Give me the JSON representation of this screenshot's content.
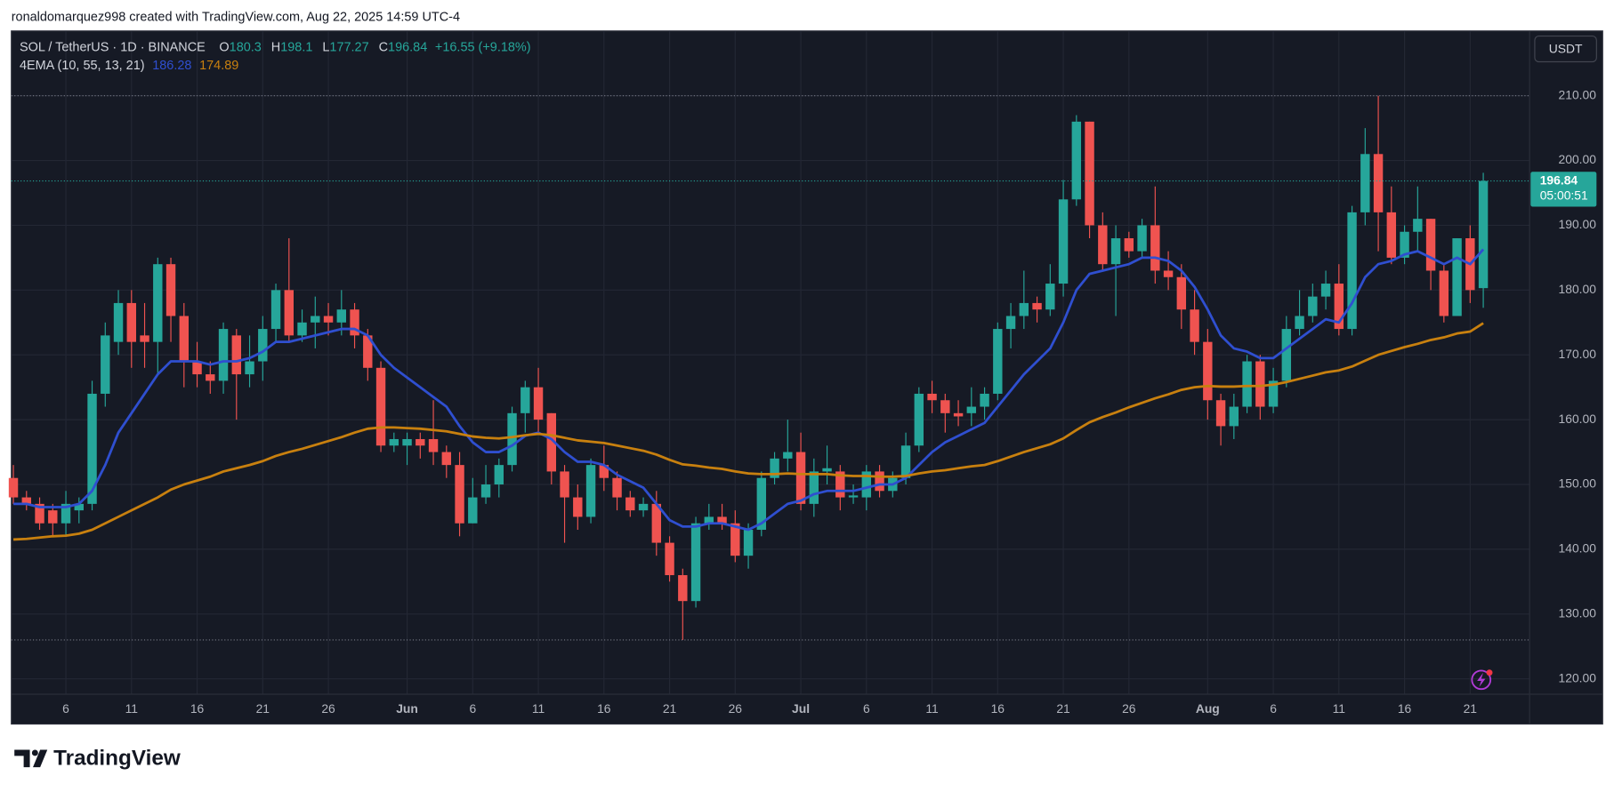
{
  "header": {
    "credit": "ronaldomarquez998 created with TradingView.com, Aug 22, 2025 14:59 UTC-4"
  },
  "footer": {
    "brand": "TradingView"
  },
  "chart_data": {
    "type": "candlestick",
    "title": "SOL / TetherUS · 1D · BINANCE",
    "ohlc_labels": [
      "O",
      "H",
      "L",
      "C"
    ],
    "change": "+16.55 (+9.18%)",
    "currency": "USDT",
    "countdown": "05:00:51",
    "up_color": "#26a69a",
    "down_color": "#ef5350",
    "grid": true,
    "categories": [
      "2025-05-02",
      "2025-05-03",
      "2025-05-04",
      "2025-05-05",
      "2025-05-06",
      "2025-05-07",
      "2025-05-08",
      "2025-05-09",
      "2025-05-10",
      "2025-05-11",
      "2025-05-12",
      "2025-05-13",
      "2025-05-14",
      "2025-05-15",
      "2025-05-16",
      "2025-05-17",
      "2025-05-18",
      "2025-05-19",
      "2025-05-20",
      "2025-05-21",
      "2025-05-22",
      "2025-05-23",
      "2025-05-24",
      "2025-05-25",
      "2025-05-26",
      "2025-05-27",
      "2025-05-28",
      "2025-05-29",
      "2025-05-30",
      "2025-05-31",
      "2025-06-01",
      "2025-06-02",
      "2025-06-03",
      "2025-06-04",
      "2025-06-05",
      "2025-06-06",
      "2025-06-07",
      "2025-06-08",
      "2025-06-09",
      "2025-06-10",
      "2025-06-11",
      "2025-06-12",
      "2025-06-13",
      "2025-06-14",
      "2025-06-15",
      "2025-06-16",
      "2025-06-17",
      "2025-06-18",
      "2025-06-19",
      "2025-06-20",
      "2025-06-21",
      "2025-06-22",
      "2025-06-23",
      "2025-06-24",
      "2025-06-25",
      "2025-06-26",
      "2025-06-27",
      "2025-06-28",
      "2025-06-29",
      "2025-06-30",
      "2025-07-01",
      "2025-07-02",
      "2025-07-03",
      "2025-07-04",
      "2025-07-05",
      "2025-07-06",
      "2025-07-07",
      "2025-07-08",
      "2025-07-09",
      "2025-07-10",
      "2025-07-11",
      "2025-07-12",
      "2025-07-13",
      "2025-07-14",
      "2025-07-15",
      "2025-07-16",
      "2025-07-17",
      "2025-07-18",
      "2025-07-19",
      "2025-07-20",
      "2025-07-21",
      "2025-07-22",
      "2025-07-23",
      "2025-07-24",
      "2025-07-25",
      "2025-07-26",
      "2025-07-27",
      "2025-07-28",
      "2025-07-29",
      "2025-07-30",
      "2025-07-31",
      "2025-08-01",
      "2025-08-02",
      "2025-08-03",
      "2025-08-04",
      "2025-08-05",
      "2025-08-06",
      "2025-08-07",
      "2025-08-08",
      "2025-08-09",
      "2025-08-10",
      "2025-08-11",
      "2025-08-12",
      "2025-08-13",
      "2025-08-14",
      "2025-08-15",
      "2025-08-16",
      "2025-08-17",
      "2025-08-18",
      "2025-08-19",
      "2025-08-20",
      "2025-08-21",
      "2025-08-22"
    ],
    "open": [
      151,
      148,
      147,
      146,
      144,
      146,
      147,
      164,
      172,
      178,
      173,
      172,
      184,
      176,
      169,
      167,
      166,
      173,
      167,
      169,
      174,
      180,
      173,
      175,
      176,
      175,
      177,
      173,
      168,
      156,
      156,
      157,
      157,
      155,
      153,
      144,
      148,
      150,
      153,
      161,
      165,
      161,
      152,
      148,
      145,
      153,
      151,
      148,
      146,
      147,
      141,
      136,
      132,
      144,
      145,
      144,
      139,
      143,
      151,
      154,
      155,
      147,
      152,
      152,
      148,
      148,
      152,
      149,
      151,
      156,
      164,
      163,
      161,
      161,
      162,
      164,
      174,
      176,
      178,
      177,
      181,
      194,
      206,
      190,
      184,
      188,
      186,
      190,
      183,
      182,
      177,
      172,
      163,
      159,
      162,
      169,
      162,
      166,
      174,
      176,
      179,
      181,
      174,
      192,
      201,
      192,
      185,
      189,
      191,
      183,
      176,
      188,
      180.3
    ],
    "high": [
      153,
      149,
      148,
      147,
      149,
      148,
      166,
      175,
      180,
      180,
      178,
      185,
      185,
      178,
      172,
      169,
      175,
      174,
      173,
      176,
      181,
      188,
      177,
      179,
      178,
      180,
      178,
      174,
      169,
      158,
      158,
      158,
      163,
      156,
      155,
      151,
      153,
      154,
      162,
      166,
      168,
      161,
      153,
      150,
      154,
      156,
      152,
      149,
      148,
      149,
      142,
      137,
      145,
      147,
      147,
      146,
      144,
      152,
      155,
      160,
      158,
      154,
      156,
      153,
      150,
      153,
      153,
      152,
      158,
      165,
      166,
      164,
      163,
      165,
      165,
      175,
      178,
      183,
      179,
      184,
      197,
      207,
      206,
      192,
      190,
      189,
      191,
      196,
      186,
      184,
      180,
      174,
      164,
      164,
      170,
      170,
      168,
      176,
      180,
      181,
      183,
      184,
      193,
      205,
      210,
      196,
      190,
      196,
      191,
      184,
      188,
      190,
      198.1
    ],
    "low": [
      147,
      146,
      143,
      142,
      142,
      144,
      146,
      162,
      170,
      168,
      168,
      167,
      172,
      165,
      165,
      164,
      164,
      160,
      165,
      166,
      172,
      172,
      172,
      171,
      173,
      173,
      171,
      166,
      155,
      155,
      153,
      154,
      153,
      151,
      142,
      144,
      147,
      148,
      152,
      158,
      158,
      150,
      141,
      143,
      144,
      149,
      146,
      145,
      145,
      139,
      135,
      126,
      131,
      143,
      143,
      138,
      137,
      142,
      150,
      152,
      146,
      145,
      150,
      146,
      147,
      146,
      148,
      148,
      150,
      155,
      161,
      158,
      159,
      159,
      160,
      163,
      171,
      174,
      175,
      176,
      179,
      193,
      188,
      183,
      176,
      185,
      185,
      181,
      180,
      174,
      170,
      160,
      156,
      157,
      161,
      160,
      161,
      165,
      173,
      175,
      177,
      173,
      173,
      190,
      186,
      184,
      184,
      186,
      180,
      175,
      176,
      178,
      177.27
    ],
    "close": [
      148,
      147,
      144,
      144,
      147,
      147,
      164,
      173,
      178,
      172,
      172,
      184,
      176,
      169,
      167,
      166,
      174,
      167,
      169,
      174,
      180,
      173,
      175,
      176,
      175,
      177,
      173,
      168,
      156,
      157,
      157,
      156,
      155,
      153,
      144,
      148,
      150,
      153,
      161,
      165,
      160,
      152,
      148,
      145,
      153,
      151,
      148,
      146,
      147,
      141,
      136,
      132,
      144,
      145,
      144,
      139,
      143,
      151,
      154,
      155,
      147,
      152,
      152.5,
      148,
      148.3,
      152,
      149,
      151,
      156,
      164,
      163,
      161,
      160.5,
      162,
      164,
      174,
      176,
      178,
      177,
      181,
      194,
      206,
      190,
      184,
      188,
      186,
      190,
      183,
      182,
      177,
      172,
      163,
      159,
      162,
      169,
      162,
      166,
      174,
      176,
      179,
      181,
      174,
      192,
      201,
      192,
      185,
      189,
      191,
      183,
      176,
      188,
      180,
      196.84
    ],
    "indicator": {
      "label": "4EMA (10, 55, 13, 21)",
      "series": [
        {
          "color": "#2f4fd0",
          "values": [
            147,
            147,
            146.5,
            146.5,
            146.5,
            147,
            149,
            153,
            158,
            161,
            164,
            167,
            169,
            169,
            169,
            168.5,
            169,
            169,
            169.5,
            170.5,
            172,
            172,
            172.5,
            173,
            173.5,
            174,
            174,
            173,
            170,
            168,
            166.5,
            165,
            163.5,
            162,
            159,
            156.5,
            155,
            155,
            156,
            157.5,
            158,
            157,
            155,
            153.5,
            153.5,
            153,
            151.5,
            150.5,
            149.5,
            147,
            144.5,
            143.5,
            143.5,
            144,
            144,
            143.5,
            143,
            144,
            145.5,
            147,
            147.5,
            148.5,
            149,
            149,
            149,
            149.5,
            150,
            150,
            151,
            153,
            155,
            156.5,
            157.5,
            158.5,
            159.5,
            162,
            164.5,
            167,
            169,
            171,
            175,
            180,
            182.5,
            183,
            183.5,
            184,
            185,
            185,
            184.5,
            183,
            180.5,
            177,
            173,
            171,
            170.5,
            169.5,
            169.5,
            171,
            172.5,
            174,
            175.5,
            175,
            178,
            182,
            184,
            184.5,
            185.5,
            186,
            185,
            184,
            185,
            184,
            186.28
          ]
        },
        {
          "color": "#c8800f",
          "values": [
            141.5,
            141.6,
            141.8,
            142,
            142.1,
            142.4,
            143,
            144,
            145,
            146,
            147,
            148,
            149.2,
            150,
            150.6,
            151.2,
            152,
            152.5,
            153,
            153.6,
            154.4,
            155,
            155.5,
            156.1,
            156.7,
            157.3,
            158,
            158.6,
            158.8,
            158.8,
            158.7,
            158.6,
            158.4,
            158.2,
            157.8,
            157.4,
            157.2,
            157.1,
            157.3,
            157.6,
            157.8,
            157.6,
            157.2,
            156.8,
            156.6,
            156.4,
            156,
            155.6,
            155.2,
            154.6,
            153.8,
            153.1,
            152.9,
            152.6,
            152.4,
            152,
            151.7,
            151.6,
            151.6,
            151.7,
            151.6,
            151.6,
            151.6,
            151.4,
            151.3,
            151.3,
            151.2,
            151.2,
            151.3,
            151.7,
            152,
            152.2,
            152.5,
            152.8,
            153,
            153.6,
            154.3,
            155,
            155.6,
            156.2,
            157.1,
            158.4,
            159.6,
            160.4,
            161.1,
            161.9,
            162.6,
            163.3,
            163.9,
            164.6,
            165,
            165.2,
            165.1,
            165.1,
            165.2,
            165.2,
            165.4,
            165.8,
            166.3,
            166.8,
            167.3,
            167.6,
            168.2,
            169.1,
            170,
            170.6,
            171.2,
            171.7,
            172.3,
            172.7,
            173.3,
            173.6,
            174.89
          ]
        }
      ]
    },
    "ylim": [
      117.62,
      220
    ],
    "yticks": [
      {
        "value": 120,
        "label": "120.00"
      },
      {
        "value": 130,
        "label": "130.00"
      },
      {
        "value": 140,
        "label": "140.00"
      },
      {
        "value": 150,
        "label": "150.00"
      },
      {
        "value": 160,
        "label": "160.00"
      },
      {
        "value": 170,
        "label": "170.00"
      },
      {
        "value": 180,
        "label": "180.00"
      },
      {
        "value": 190,
        "label": "190.00"
      },
      {
        "value": 200,
        "label": "200.00"
      },
      {
        "value": 210,
        "label": "210.00"
      }
    ],
    "xticks": [
      {
        "value": "2025-05-06",
        "label": "6"
      },
      {
        "value": "2025-05-11",
        "label": "11"
      },
      {
        "value": "2025-05-16",
        "label": "16"
      },
      {
        "value": "2025-05-21",
        "label": "21"
      },
      {
        "value": "2025-05-26",
        "label": "26"
      },
      {
        "value": "2025-06-01",
        "label": "Jun"
      },
      {
        "value": "2025-06-06",
        "label": "6"
      },
      {
        "value": "2025-06-11",
        "label": "11"
      },
      {
        "value": "2025-06-16",
        "label": "16"
      },
      {
        "value": "2025-06-21",
        "label": "21"
      },
      {
        "value": "2025-06-26",
        "label": "26"
      },
      {
        "value": "2025-07-01",
        "label": "Jul"
      },
      {
        "value": "2025-07-06",
        "label": "6"
      },
      {
        "value": "2025-07-11",
        "label": "11"
      },
      {
        "value": "2025-07-16",
        "label": "16"
      },
      {
        "value": "2025-07-21",
        "label": "21"
      },
      {
        "value": "2025-07-26",
        "label": "26"
      },
      {
        "value": "2025-08-01",
        "label": "Aug"
      },
      {
        "value": "2025-08-06",
        "label": "6"
      },
      {
        "value": "2025-08-11",
        "label": "11"
      },
      {
        "value": "2025-08-16",
        "label": "16"
      },
      {
        "value": "2025-08-21",
        "label": "21"
      }
    ]
  }
}
